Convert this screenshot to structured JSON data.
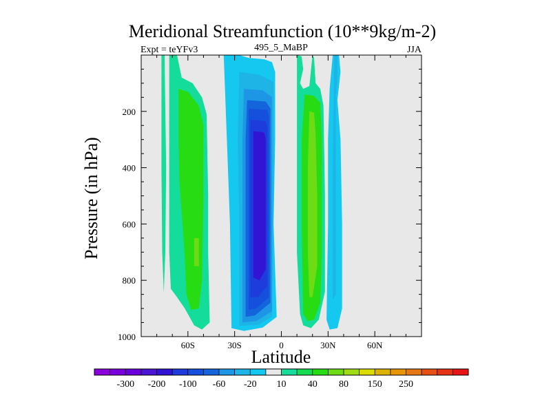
{
  "chart_data": {
    "type": "contour",
    "title": "Meridional Streamfunction (10**9kg/m-2)",
    "subtitle_left": "Expt = teYFv3",
    "subtitle_center": "495_5_MaBP",
    "subtitle_right": "JJA",
    "xlabel": "Latitude",
    "ylabel": "Pressure (in hPa)",
    "xlim": [
      -90,
      90
    ],
    "ylim": [
      0,
      1000
    ],
    "xticks": [
      {
        "value": -60,
        "label": "60S"
      },
      {
        "value": -30,
        "label": "30S"
      },
      {
        "value": 0,
        "label": "0"
      },
      {
        "value": 30,
        "label": "30N"
      },
      {
        "value": 60,
        "label": "60N"
      }
    ],
    "yticks": [
      {
        "value": 200,
        "label": "200"
      },
      {
        "value": 400,
        "label": "400"
      },
      {
        "value": 600,
        "label": "600"
      },
      {
        "value": 800,
        "label": "800"
      },
      {
        "value": 1000,
        "label": "1000"
      }
    ],
    "background_color": "#e8e8e8",
    "colorbar": {
      "colors": [
        "#8a00dc",
        "#7a00dc",
        "#6a00dc",
        "#4c14d4",
        "#3214d4",
        "#1e3cdc",
        "#1450dc",
        "#1464dc",
        "#1e96e6",
        "#1eb4e6",
        "#14c8f0",
        "#e8e8e8",
        "#14dc9b",
        "#14dc50",
        "#28dc14",
        "#6edc14",
        "#a0dc14",
        "#dcdc00",
        "#dcb400",
        "#e69600",
        "#e67814",
        "#e65014",
        "#e63214",
        "#e61414"
      ],
      "labels": [
        {
          "after": 1,
          "text": "-300"
        },
        {
          "after": 3,
          "text": "-200"
        },
        {
          "after": 5,
          "text": "-100"
        },
        {
          "after": 7,
          "text": "-60"
        },
        {
          "after": 9,
          "text": "-20"
        },
        {
          "after": 11,
          "text": "10"
        },
        {
          "after": 13,
          "text": "40"
        },
        {
          "after": 15,
          "text": "80"
        },
        {
          "after": 17,
          "text": "150"
        },
        {
          "after": 19,
          "text": "250"
        }
      ]
    },
    "regions": [
      {
        "name": "sh-polar-cell",
        "color": "#14dc9b",
        "points": [
          [
            -77,
            0
          ],
          [
            -75,
            0
          ],
          [
            -74,
            400
          ],
          [
            -74.5,
            700
          ],
          [
            -75.5,
            845
          ],
          [
            -76.5,
            700
          ],
          [
            -77,
            400
          ]
        ]
      },
      {
        "name": "sh-ferrel-outer",
        "color": "#14dc9b",
        "points": [
          [
            -72,
            0
          ],
          [
            -67,
            0
          ],
          [
            -64,
            80
          ],
          [
            -57,
            100
          ],
          [
            -51,
            150
          ],
          [
            -48,
            210
          ],
          [
            -47,
            500
          ],
          [
            -47,
            700
          ],
          [
            -46,
            950
          ],
          [
            -51,
            975
          ],
          [
            -56,
            960
          ],
          [
            -62,
            900
          ],
          [
            -67,
            860
          ],
          [
            -71,
            830
          ],
          [
            -72,
            700
          ]
        ]
      },
      {
        "name": "sh-ferrel-core",
        "color": "#28dc14",
        "points": [
          [
            -66,
            120
          ],
          [
            -60,
            130
          ],
          [
            -53,
            180
          ],
          [
            -50,
            250
          ],
          [
            -50,
            500
          ],
          [
            -51,
            800
          ],
          [
            -53,
            900
          ],
          [
            -58,
            905
          ],
          [
            -61,
            850
          ],
          [
            -62,
            720
          ],
          [
            -64,
            560
          ],
          [
            -65.5,
            450
          ],
          [
            -66,
            300
          ]
        ]
      },
      {
        "name": "sh-ferrel-inner",
        "color": "#6edc14",
        "points": [
          [
            -56,
            650
          ],
          [
            -53,
            650
          ],
          [
            -53,
            750
          ],
          [
            -56,
            750
          ]
        ]
      },
      {
        "name": "hadley-outer",
        "color": "#14c8f0",
        "points": [
          [
            -37,
            0
          ],
          [
            -27,
            0
          ],
          [
            -21,
            10
          ],
          [
            -11,
            15
          ],
          [
            -6,
            25
          ],
          [
            -4,
            60
          ],
          [
            -4,
            300
          ],
          [
            -5,
            600
          ],
          [
            -3,
            930
          ],
          [
            -12,
            968
          ],
          [
            -24,
            980
          ],
          [
            -32,
            970
          ],
          [
            -33,
            600
          ],
          [
            -35,
            300
          ]
        ]
      },
      {
        "name": "hadley-2",
        "color": "#1eb4e6",
        "points": [
          [
            -27,
            60
          ],
          [
            -14,
            70
          ],
          [
            -5,
            95
          ],
          [
            -5,
            500
          ],
          [
            -6,
            930
          ],
          [
            -15,
            958
          ],
          [
            -27,
            962
          ],
          [
            -27,
            600
          ],
          [
            -28,
            300
          ]
        ]
      },
      {
        "name": "hadley-3",
        "color": "#1e96e6",
        "points": [
          [
            -24,
            120
          ],
          [
            -12,
            125
          ],
          [
            -6,
            150
          ],
          [
            -6,
            500
          ],
          [
            -6,
            910
          ],
          [
            -16,
            945
          ],
          [
            -25,
            950
          ],
          [
            -25,
            700
          ],
          [
            -25,
            300
          ]
        ]
      },
      {
        "name": "hadley-4",
        "color": "#1464dc",
        "points": [
          [
            -22,
            160
          ],
          [
            -10,
            165
          ],
          [
            -7,
            190
          ],
          [
            -7,
            500
          ],
          [
            -7,
            880
          ],
          [
            -17,
            925
          ],
          [
            -23,
            930
          ],
          [
            -23,
            700
          ],
          [
            -23,
            300
          ]
        ]
      },
      {
        "name": "hadley-5",
        "color": "#1450dc",
        "points": [
          [
            -21,
            190
          ],
          [
            -9,
            195
          ],
          [
            -8,
            220
          ],
          [
            -8,
            500
          ],
          [
            -8,
            860
          ],
          [
            -16,
            900
          ],
          [
            -21,
            905
          ],
          [
            -21,
            700
          ],
          [
            -21,
            300
          ]
        ]
      },
      {
        "name": "hadley-6",
        "color": "#1e3cdc",
        "points": [
          [
            -20,
            230
          ],
          [
            -10,
            235
          ],
          [
            -9,
            260
          ],
          [
            -9,
            500
          ],
          [
            -9,
            820
          ],
          [
            -15,
            860
          ],
          [
            -20,
            860
          ],
          [
            -20,
            650
          ],
          [
            -20,
            320
          ]
        ]
      },
      {
        "name": "hadley-core",
        "color": "#3214d4",
        "points": [
          [
            -18,
            270
          ],
          [
            -11,
            275
          ],
          [
            -10,
            300
          ],
          [
            -10,
            500
          ],
          [
            -10,
            760
          ],
          [
            -14,
            800
          ],
          [
            -18,
            790
          ],
          [
            -18,
            600
          ],
          [
            -18,
            350
          ]
        ]
      },
      {
        "name": "nh-cell-outer",
        "color": "#14dc9b",
        "points": [
          [
            10,
            0
          ],
          [
            13,
            5
          ],
          [
            14,
            50
          ],
          [
            12,
            100
          ],
          [
            14,
            120
          ],
          [
            18,
            110
          ],
          [
            20,
            0
          ],
          [
            21,
            10
          ],
          [
            22,
            100
          ],
          [
            25,
            120
          ],
          [
            27,
            180
          ],
          [
            28,
            500
          ],
          [
            28,
            840
          ],
          [
            24,
            940
          ],
          [
            19,
            970
          ],
          [
            14,
            960
          ],
          [
            12,
            920
          ],
          [
            10,
            700
          ],
          [
            10,
            300
          ]
        ]
      },
      {
        "name": "nh-cell-mid",
        "color": "#28dc14",
        "points": [
          [
            15,
            140
          ],
          [
            21,
            145
          ],
          [
            25,
            170
          ],
          [
            26,
            300
          ],
          [
            26,
            700
          ],
          [
            25,
            880
          ],
          [
            21,
            940
          ],
          [
            17,
            945
          ],
          [
            14,
            920
          ],
          [
            13,
            600
          ],
          [
            13,
            300
          ]
        ]
      },
      {
        "name": "nh-cell-core",
        "color": "#6edc14",
        "points": [
          [
            18,
            200
          ],
          [
            21,
            205
          ],
          [
            22,
            280
          ],
          [
            23,
            500
          ],
          [
            23,
            750
          ],
          [
            20,
            860
          ],
          [
            18,
            860
          ],
          [
            17,
            700
          ],
          [
            17,
            400
          ]
        ]
      },
      {
        "name": "nh-midlat-outer",
        "color": "#14c8f0",
        "points": [
          [
            33,
            0
          ],
          [
            37,
            0
          ],
          [
            38,
            60
          ],
          [
            36,
            160
          ],
          [
            38,
            300
          ],
          [
            39,
            600
          ],
          [
            39,
            900
          ],
          [
            36,
            970
          ],
          [
            31,
            975
          ],
          [
            29,
            940
          ],
          [
            30,
            600
          ],
          [
            30,
            300
          ],
          [
            31,
            120
          ]
        ]
      },
      {
        "name": "nh-midlat-inner",
        "color": "#1eb4e6",
        "points": [
          [
            34,
            0
          ],
          [
            36,
            0
          ],
          [
            36,
            80
          ],
          [
            35,
            150
          ],
          [
            35,
            500
          ],
          [
            35,
            850
          ],
          [
            33,
            870
          ],
          [
            33,
            400
          ]
        ]
      }
    ]
  }
}
